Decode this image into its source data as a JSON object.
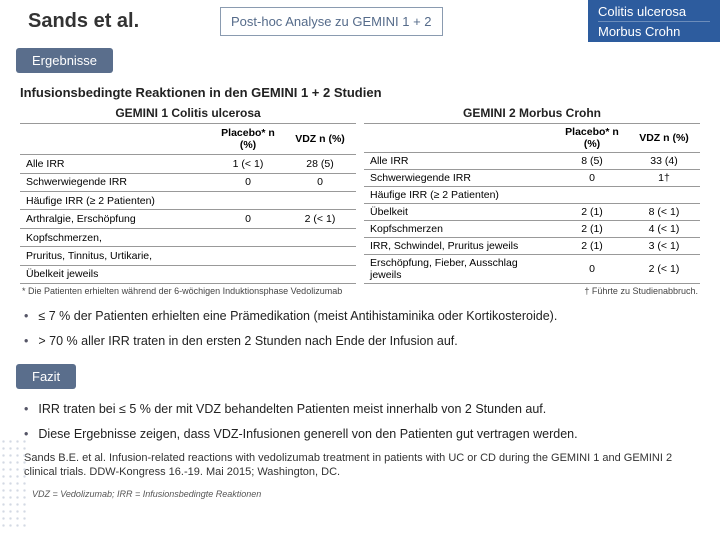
{
  "header": {
    "title": "Sands et al.",
    "subtitle": "Post-hoc Analyse zu GEMINI 1 + 2",
    "disease1": "Colitis ulcerosa",
    "disease2": "Morbus Crohn"
  },
  "sections": {
    "results_label": "Ergebnisse",
    "table_heading": "Infusionsbedingte Reaktionen in den GEMINI 1 + 2 Studien",
    "conclusion_label": "Fazit"
  },
  "table1": {
    "caption": "GEMINI 1 Colitis ulcerosa",
    "col0": "",
    "col1": "Placebo* n (%)",
    "col2": "VDZ n (%)",
    "rows": [
      [
        "Alle IRR",
        "1 (< 1)",
        "28 (5)"
      ],
      [
        "Schwerwiegende IRR",
        "0",
        "0"
      ],
      [
        "Häufige IRR (≥ 2 Patienten)",
        "",
        ""
      ],
      [
        "Arthralgie, Erschöpfung",
        "0",
        "2 (< 1)"
      ],
      [
        "Kopfschmerzen,",
        "",
        ""
      ],
      [
        "Pruritus, Tinnitus, Urtikarie,",
        "",
        ""
      ],
      [
        "Übelkeit jeweils",
        "",
        ""
      ]
    ]
  },
  "table2": {
    "caption": "GEMINI 2 Morbus Crohn",
    "col0": "",
    "col1": "Placebo* n (%)",
    "col2": "VDZ n (%)",
    "rows": [
      [
        "Alle IRR",
        "8 (5)",
        "33 (4)"
      ],
      [
        "Schwerwiegende IRR",
        "0",
        "1†"
      ],
      [
        "Häufige IRR (≥ 2 Patienten)",
        "",
        ""
      ],
      [
        "Übelkeit",
        "2 (1)",
        "8 (< 1)"
      ],
      [
        "Kopfschmerzen",
        "2 (1)",
        "4 (< 1)"
      ],
      [
        "IRR, Schwindel, Pruritus jeweils",
        "2 (1)",
        "3 (< 1)"
      ],
      [
        "Erschöpfung, Fieber, Ausschlag jeweils",
        "0",
        "2 (< 1)"
      ]
    ]
  },
  "footnotes": {
    "left": "* Die Patienten erhielten während der 6-wöchigen Induktionsphase Vedolizumab",
    "right": "† Führte zu Studienabbruch."
  },
  "results_bullets": [
    "≤ 7 % der Patienten erhielten eine Prämedikation (meist Antihistaminika oder Kortikosteroide).",
    "> 70 % aller IRR traten in den ersten 2 Stunden nach Ende der Infusion auf."
  ],
  "conclusion_bullets": [
    "IRR traten bei ≤ 5 % der mit VDZ behandelten Patienten meist innerhalb von 2 Stunden auf.",
    "Diese Ergebnisse zeigen, dass VDZ-Infusionen generell von den Patienten gut vertragen werden."
  ],
  "citation": "Sands B.E. et al. Infusion-related reactions with vedolizumab treatment in patients with UC or CD during the GEMINI 1 and GEMINI 2 clinical trials. DDW-Kongress 16.-19. Mai 2015; Washington, DC.",
  "abbrev": "VDZ = Vedolizumab; IRR = Infusionsbedingte Reaktionen"
}
